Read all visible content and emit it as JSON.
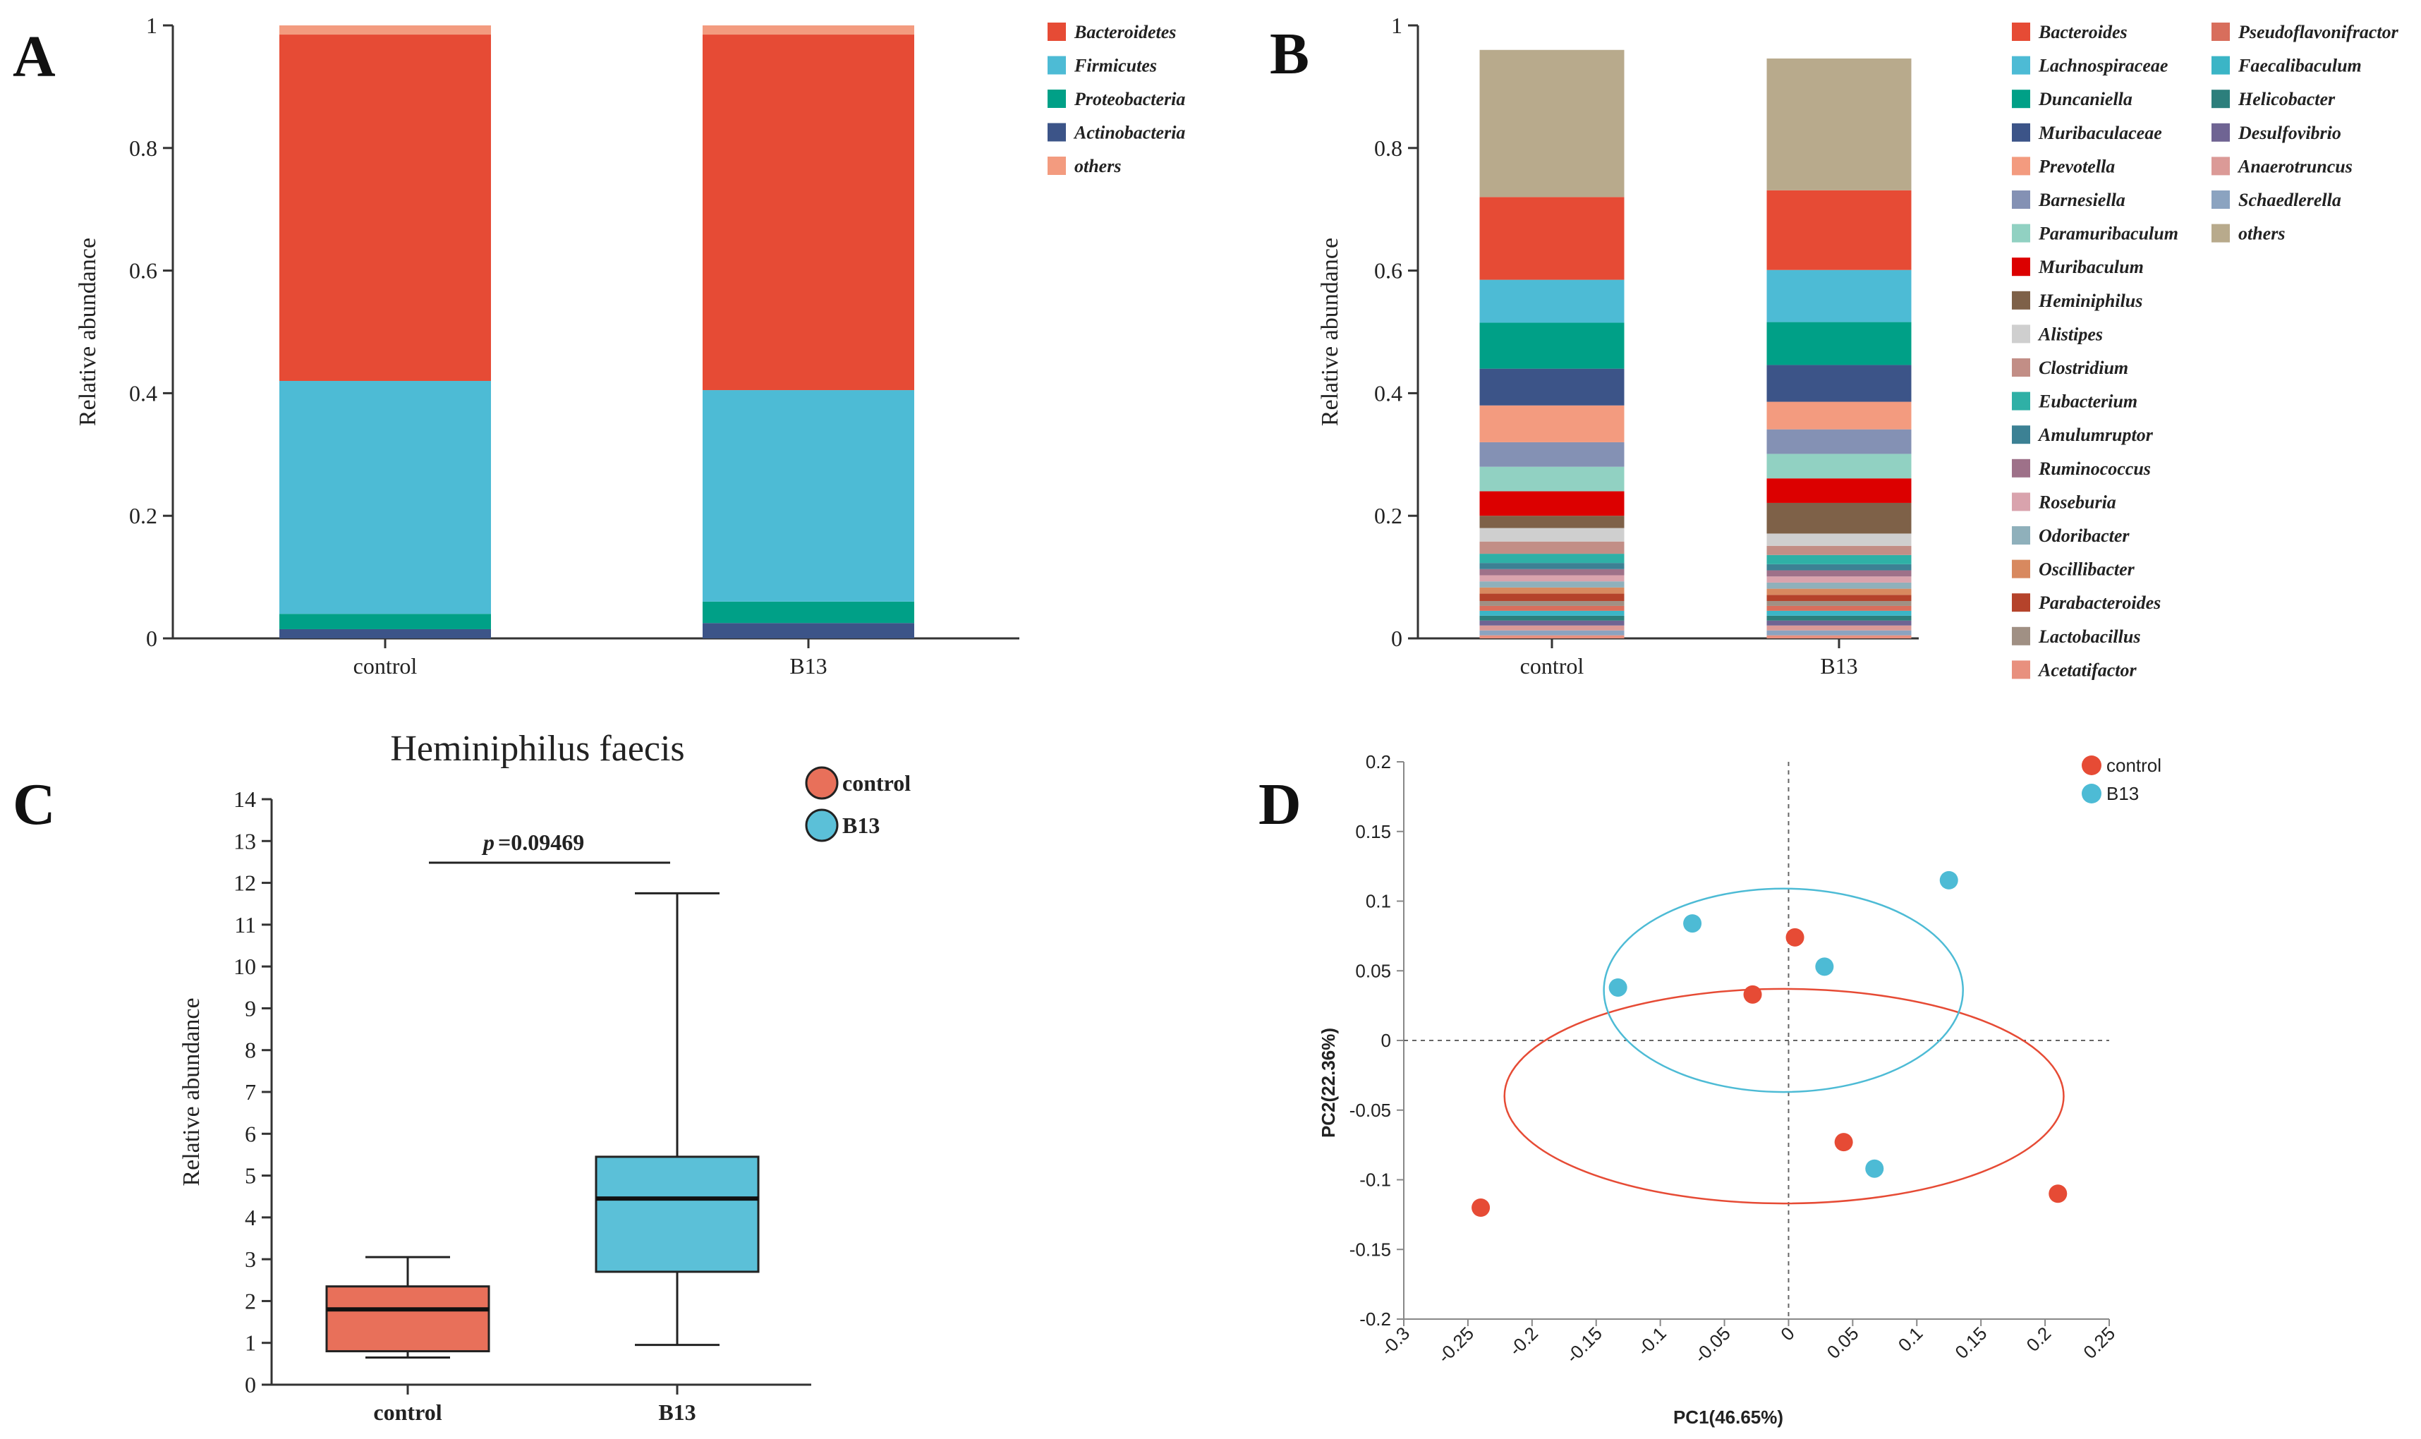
{
  "chart_data": [
    {
      "panel": "A",
      "type": "bar",
      "stacked": true,
      "categories": [
        "control",
        "B13"
      ],
      "ylabel": "Relative abundance",
      "ylim": [
        0,
        1
      ],
      "yticks": [
        "0",
        "0.2",
        "0.4",
        "0.6",
        "0.8",
        "1"
      ],
      "series": [
        {
          "name": "Actinobacteria",
          "color": "#3c5488",
          "values": [
            0.015,
            0.025
          ]
        },
        {
          "name": "Proteobacteria",
          "color": "#00a087",
          "values": [
            0.025,
            0.035
          ]
        },
        {
          "name": "Firmicutes",
          "color": "#4dbbd5",
          "values": [
            0.38,
            0.345
          ]
        },
        {
          "name": "Bacteroidetes",
          "color": "#e64b35",
          "values": [
            0.565,
            0.58
          ]
        },
        {
          "name": "others",
          "color": "#f39b7f",
          "values": [
            0.015,
            0.015
          ]
        }
      ],
      "legend": [
        "Bacteroidetes",
        "Firmicutes",
        "Proteobacteria",
        "Actinobacteria",
        "others"
      ]
    },
    {
      "panel": "B",
      "type": "bar",
      "stacked": true,
      "categories": [
        "control",
        "B13"
      ],
      "ylabel": "Relative abundance",
      "ylim": [
        0,
        1
      ],
      "yticks": [
        "0",
        "0.2",
        "0.4",
        "0.6",
        "0.8",
        "1"
      ],
      "series": [
        {
          "name": "Acetatifactor",
          "color": "#e8907e",
          "values": [
            0.005,
            0.005
          ]
        },
        {
          "name": "Schaedlerella",
          "color": "#8ba3c0",
          "values": [
            0.008,
            0.008
          ]
        },
        {
          "name": "Anaerotruncus",
          "color": "#db9a97",
          "values": [
            0.008,
            0.008
          ]
        },
        {
          "name": "Desulfovibrio",
          "color": "#6f6493",
          "values": [
            0.008,
            0.008
          ]
        },
        {
          "name": "Helicobacter",
          "color": "#2c7f7c",
          "values": [
            0.008,
            0.008
          ]
        },
        {
          "name": "Faecalibaculum",
          "color": "#3bb5c6",
          "values": [
            0.008,
            0.008
          ]
        },
        {
          "name": "Pseudoflavonifractor",
          "color": "#d86e5c",
          "values": [
            0.008,
            0.008
          ]
        },
        {
          "name": "Lactobacillus",
          "color": "#a09084",
          "values": [
            0.008,
            0.008
          ]
        },
        {
          "name": "Parabacteroides",
          "color": "#b5432b",
          "values": [
            0.012,
            0.01
          ]
        },
        {
          "name": "Oscillibacter",
          "color": "#d8895f",
          "values": [
            0.01,
            0.01
          ]
        },
        {
          "name": "Odoribacter",
          "color": "#8fb0bb",
          "values": [
            0.01,
            0.01
          ]
        },
        {
          "name": "Roseburia",
          "color": "#d9a3ad",
          "values": [
            0.01,
            0.01
          ]
        },
        {
          "name": "Ruminococcus",
          "color": "#9e7189",
          "values": [
            0.01,
            0.01
          ]
        },
        {
          "name": "Amulumruptor",
          "color": "#3c8194",
          "values": [
            0.01,
            0.01
          ]
        },
        {
          "name": "Eubacterium",
          "color": "#2fb0a6",
          "values": [
            0.015,
            0.015
          ]
        },
        {
          "name": "Clostridium",
          "color": "#c28e86",
          "values": [
            0.02,
            0.015
          ]
        },
        {
          "name": "Alistipes",
          "color": "#cfcfcf",
          "values": [
            0.022,
            0.02
          ]
        },
        {
          "name": "Heminiphilus",
          "color": "#7e6148",
          "values": [
            0.02,
            0.05
          ]
        },
        {
          "name": "Muribaculum",
          "color": "#dc0000",
          "values": [
            0.04,
            0.04
          ]
        },
        {
          "name": "Paramuribaculum",
          "color": "#91d1c2",
          "values": [
            0.04,
            0.04
          ]
        },
        {
          "name": "Barnesiella",
          "color": "#8491b4",
          "values": [
            0.04,
            0.04
          ]
        },
        {
          "name": "Prevotella",
          "color": "#f39b7f",
          "values": [
            0.06,
            0.045
          ]
        },
        {
          "name": "Muribaculaceae",
          "color": "#3c5488",
          "values": [
            0.06,
            0.06
          ]
        },
        {
          "name": "Duncaniella",
          "color": "#00a087",
          "values": [
            0.075,
            0.07
          ]
        },
        {
          "name": "Lachnospiraceae",
          "color": "#4dbbd5",
          "values": [
            0.07,
            0.085
          ]
        },
        {
          "name": "Bacteroides",
          "color": "#e64b35",
          "values": [
            0.135,
            0.13
          ]
        },
        {
          "name": "others",
          "color": "#b8aa8c",
          "values": [
            0.24,
            0.215
          ]
        }
      ],
      "legend_col1": [
        "Bacteroides",
        "Lachnospiraceae",
        "Duncaniella",
        "Muribaculaceae",
        "Prevotella",
        "Barnesiella",
        "Paramuribaculum",
        "Muribaculum",
        "Heminiphilus",
        "Alistipes",
        "Clostridium",
        "Eubacterium",
        "Amulumruptor",
        "Ruminococcus",
        "Roseburia",
        "Odoribacter",
        "Oscillibacter",
        "Parabacteroides",
        "Lactobacillus",
        "Acetatifactor"
      ],
      "legend_col2": [
        "Pseudoflavonifractor",
        "Faecalibaculum",
        "Helicobacter",
        "Desulfovibrio",
        "Anaerotruncus",
        "Schaedlerella",
        "others"
      ]
    },
    {
      "panel": "C",
      "type": "box",
      "title": "Heminiphilus faecis",
      "ylabel": "Relative abundance",
      "ylim": [
        0,
        14
      ],
      "yticks": [
        "0",
        "1",
        "2",
        "3",
        "4",
        "5",
        "6",
        "7",
        "8",
        "9",
        "10",
        "11",
        "12",
        "13",
        "14"
      ],
      "categories": [
        "control",
        "B13"
      ],
      "boxes": [
        {
          "name": "control",
          "color": "#e8705a",
          "min": 0.65,
          "q1": 0.8,
          "median": 1.8,
          "q3": 2.35,
          "max": 3.05
        },
        {
          "name": "B13",
          "color": "#5bc0d8",
          "min": 0.95,
          "q1": 2.7,
          "median": 4.45,
          "q3": 5.45,
          "max": 11.75
        }
      ],
      "annotation": {
        "p_label": "p",
        "p_value": "=0.09469"
      },
      "legend": [
        "control",
        "B13"
      ]
    },
    {
      "panel": "D",
      "type": "scatter",
      "xlabel": "PC1(46.65%)",
      "ylabel": "PC2(22.36%)",
      "xlim": [
        -0.3,
        0.25
      ],
      "ylim": [
        -0.2,
        0.2
      ],
      "xticks": [
        "-0.3",
        "-0.25",
        "-0.2",
        "-0.15",
        "-0.1",
        "-0.05",
        "0",
        "0.05",
        "0.1",
        "0.15",
        "0.2",
        "0.25"
      ],
      "yticks": [
        "-0.2",
        "-0.15",
        "-0.1",
        "-0.05",
        "0",
        "0.05",
        "0.1",
        "0.15",
        "0.2"
      ],
      "series": [
        {
          "name": "control",
          "color": "#e64b35",
          "points": [
            [
              -0.24,
              -0.12
            ],
            [
              -0.028,
              0.033
            ],
            [
              0.005,
              0.074
            ],
            [
              0.043,
              -0.073
            ],
            [
              0.21,
              -0.11
            ]
          ]
        },
        {
          "name": "B13",
          "color": "#4dbbd5",
          "points": [
            [
              -0.133,
              0.038
            ],
            [
              -0.075,
              0.084
            ],
            [
              0.028,
              0.053
            ],
            [
              0.125,
              0.115
            ],
            [
              0.067,
              -0.092
            ]
          ]
        }
      ],
      "ellipses": [
        {
          "group": "control",
          "color": "#e64b35",
          "cx": -0.0035,
          "cy": -0.04,
          "rx": 0.218,
          "ry": 0.077
        },
        {
          "group": "B13",
          "color": "#4dbbd5",
          "cx": -0.004,
          "cy": 0.036,
          "rx": 0.14,
          "ry": 0.073
        }
      ],
      "legend": [
        "control",
        "B13"
      ]
    }
  ],
  "panel_labels": [
    "A",
    "B",
    "C",
    "D"
  ]
}
